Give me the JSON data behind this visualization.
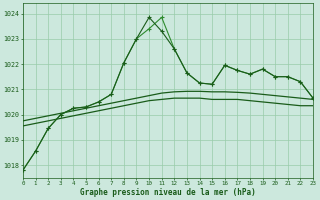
{
  "x": [
    0,
    1,
    2,
    3,
    4,
    5,
    6,
    7,
    8,
    9,
    10,
    11,
    12,
    13,
    14,
    15,
    16,
    17,
    18,
    19,
    20,
    21,
    22,
    23
  ],
  "line_jagged1": [
    1017.8,
    1018.55,
    1019.45,
    1020.0,
    1020.25,
    1020.3,
    1020.5,
    1020.8,
    1022.05,
    1023.0,
    1023.4,
    1023.85,
    1022.6,
    1021.65,
    1021.25,
    1021.2,
    1021.95,
    1021.75,
    1021.6,
    1021.8,
    1021.5,
    1021.5,
    1021.3,
    1020.65
  ],
  "line_jagged2": [
    1017.8,
    1018.55,
    1019.45,
    1020.0,
    1020.25,
    1020.3,
    1020.5,
    1020.8,
    1022.05,
    1023.0,
    1023.85,
    1023.3,
    1022.6,
    1021.65,
    1021.25,
    1021.2,
    1021.95,
    1021.75,
    1021.6,
    1021.8,
    1021.5,
    1021.5,
    1021.3,
    1020.65
  ],
  "line_smooth1": [
    1019.55,
    1019.65,
    1019.75,
    1019.85,
    1019.95,
    1020.05,
    1020.15,
    1020.25,
    1020.35,
    1020.45,
    1020.55,
    1020.6,
    1020.65,
    1020.65,
    1020.65,
    1020.6,
    1020.6,
    1020.6,
    1020.55,
    1020.5,
    1020.45,
    1020.4,
    1020.35,
    1020.35
  ],
  "line_smooth2": [
    1019.75,
    1019.85,
    1019.95,
    1020.05,
    1020.15,
    1020.25,
    1020.35,
    1020.45,
    1020.55,
    1020.65,
    1020.75,
    1020.85,
    1020.9,
    1020.92,
    1020.92,
    1020.9,
    1020.9,
    1020.88,
    1020.85,
    1020.8,
    1020.75,
    1020.7,
    1020.65,
    1020.6
  ],
  "bg_color": "#cce8dd",
  "grid_color": "#99ccaa",
  "line_dark_color": "#1a5c1a",
  "line_mid_color": "#2e8b2e",
  "ylabel_ticks": [
    1018,
    1019,
    1020,
    1021,
    1022,
    1023,
    1024
  ],
  "xlabel": "Graphe pression niveau de la mer (hPa)",
  "ylim": [
    1017.5,
    1024.4
  ],
  "xlim": [
    0,
    23
  ]
}
